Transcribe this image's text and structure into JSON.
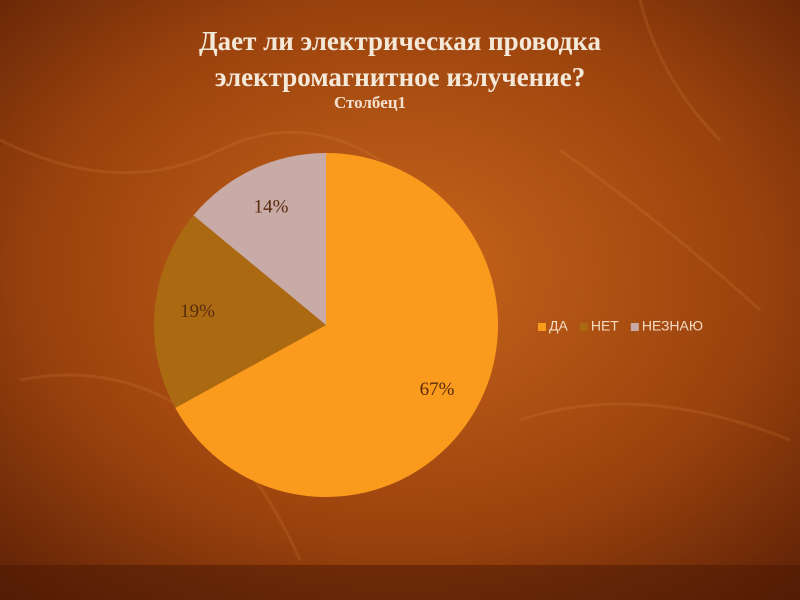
{
  "chart_data": {
    "type": "pie",
    "title": [
      "Дает ли электрическая проводка",
      "электромагнитное излучение?"
    ],
    "subtitle": "Столбец1",
    "categories": [
      "ДА",
      "НЕТ",
      "НЕЗНАЮ"
    ],
    "values": [
      67,
      19,
      14
    ],
    "value_labels": [
      "67%",
      "19%",
      "14%"
    ],
    "colors": [
      "#fb9b1d",
      "#ab6a12",
      "#c8aba6"
    ],
    "legend": "right"
  }
}
